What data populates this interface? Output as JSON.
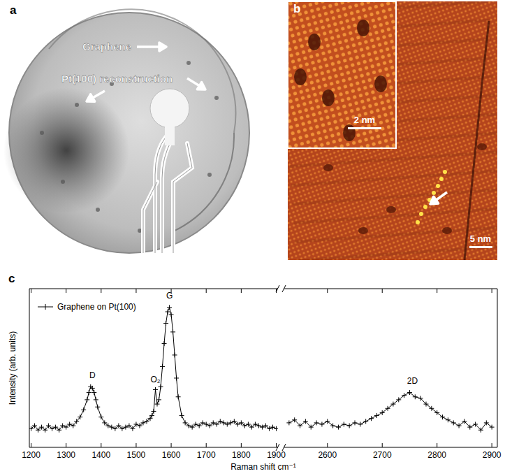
{
  "panels": [
    {
      "letter": "a",
      "labels": {
        "graphene": "Graphene",
        "reconstruction": "Pt(100) reconstruction"
      }
    },
    {
      "letter": "b",
      "scale_bars": {
        "inset": "2 nm",
        "main": "5 nm"
      }
    },
    {
      "letter": "c"
    }
  ],
  "chart_data": [
    {
      "type": "line",
      "ylabel": "Intensity (arb. units)",
      "xlabel": "Raman shift cm⁻¹",
      "tick_labels": "x",
      "legend": "upper left",
      "xlim": [
        1195,
        1905
      ],
      "ylim": [
        0,
        110
      ],
      "xticks": [
        1200,
        1300,
        1400,
        1500,
        1600,
        1700,
        1800,
        1900
      ],
      "x": [
        1200,
        1210,
        1220,
        1230,
        1240,
        1250,
        1260,
        1270,
        1280,
        1290,
        1300,
        1310,
        1320,
        1330,
        1340,
        1350,
        1360,
        1365,
        1370,
        1375,
        1380,
        1385,
        1390,
        1400,
        1410,
        1420,
        1430,
        1440,
        1450,
        1460,
        1470,
        1480,
        1490,
        1500,
        1510,
        1520,
        1530,
        1540,
        1545,
        1550,
        1555,
        1560,
        1565,
        1570,
        1575,
        1580,
        1585,
        1590,
        1595,
        1600,
        1605,
        1610,
        1615,
        1620,
        1630,
        1640,
        1650,
        1660,
        1670,
        1680,
        1690,
        1700,
        1710,
        1720,
        1730,
        1740,
        1750,
        1760,
        1770,
        1780,
        1790,
        1800,
        1810,
        1820,
        1830,
        1840,
        1850,
        1860,
        1870,
        1880,
        1890,
        1900
      ],
      "series": [
        {
          "name": "Graphene on Pt(100)",
          "color": "#000000",
          "marker": "plus",
          "values": [
            13,
            15,
            12,
            14,
            12,
            15,
            13,
            14,
            12,
            15,
            14,
            16,
            15,
            18,
            21,
            26,
            33,
            38,
            42,
            41,
            38,
            33,
            28,
            21,
            17,
            15,
            14,
            13,
            15,
            13,
            14,
            15,
            13,
            16,
            15,
            17,
            18,
            20,
            22,
            25,
            40,
            30,
            33,
            42,
            56,
            72,
            86,
            94,
            97,
            92,
            80,
            64,
            48,
            35,
            22,
            17,
            15,
            14,
            16,
            15,
            17,
            16,
            15,
            17,
            16,
            18,
            17,
            16,
            17,
            18,
            16,
            17,
            15,
            16,
            14,
            16,
            15,
            14,
            15,
            13,
            14,
            13
          ]
        }
      ],
      "annotations": [
        {
          "text": "D",
          "x": 1375,
          "y": 48
        },
        {
          "text": "O₂",
          "x": 1555,
          "y": 45
        },
        {
          "text": "G",
          "x": 1595,
          "y": 103
        }
      ]
    },
    {
      "type": "line",
      "tick_labels": "x",
      "xlim": [
        2520,
        2910
      ],
      "ylim": [
        0,
        110
      ],
      "xticks": [
        2600,
        2700,
        2800,
        2900
      ],
      "x": [
        2530,
        2540,
        2550,
        2560,
        2570,
        2580,
        2590,
        2600,
        2610,
        2620,
        2630,
        2640,
        2650,
        2660,
        2670,
        2680,
        2690,
        2700,
        2710,
        2720,
        2730,
        2740,
        2750,
        2760,
        2770,
        2780,
        2790,
        2800,
        2810,
        2820,
        2830,
        2840,
        2850,
        2860,
        2870,
        2880,
        2890,
        2900
      ],
      "series": [
        {
          "color": "#000000",
          "marker": "plus",
          "values": [
            17,
            19,
            15,
            18,
            14,
            17,
            16,
            18,
            15,
            14,
            16,
            15,
            17,
            16,
            18,
            20,
            22,
            24,
            27,
            30,
            33,
            36,
            38,
            35,
            34,
            30,
            27,
            24,
            21,
            19,
            17,
            15,
            18,
            14,
            16,
            12,
            17,
            14
          ]
        }
      ],
      "annotations": [
        {
          "text": "2D",
          "x": 2755,
          "y": 44
        }
      ]
    }
  ]
}
